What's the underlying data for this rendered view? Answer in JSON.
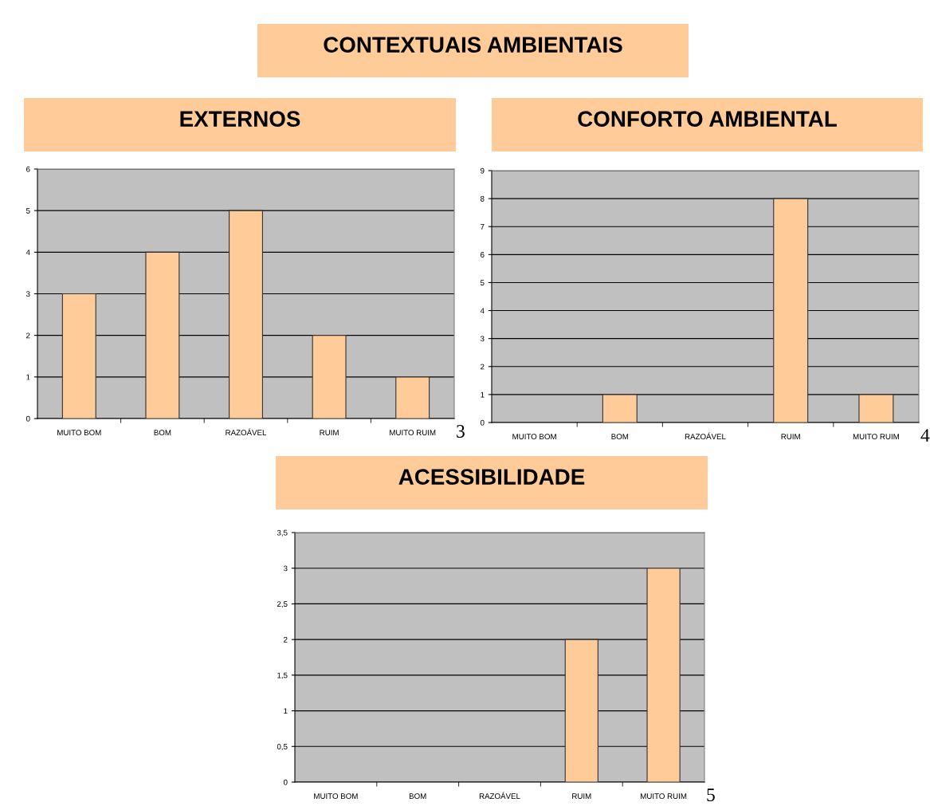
{
  "chart_data": [
    {
      "type": "other",
      "title": "CONTEXTUAIS AMBIENTAIS"
    },
    {
      "type": "bar",
      "title": "EXTERNOS",
      "categories": [
        "MUITO BOM",
        "BOM",
        "RAZOÁVEL",
        "RUIM",
        "MUITO RUIM"
      ],
      "values": [
        3,
        4,
        5,
        2,
        1
      ],
      "color": "#ffcc99",
      "ylim": [
        0,
        6
      ],
      "yticks": [
        0,
        1,
        2,
        3,
        4,
        5,
        6
      ],
      "grid": "y",
      "legend": false,
      "annotations": [
        "3"
      ]
    },
    {
      "type": "bar",
      "title": "CONFORTO AMBIENTAL",
      "categories": [
        "MUITO BOM",
        "BOM",
        "RAZOÁVEL",
        "RUIM",
        "MUITO RUIM"
      ],
      "values": [
        0,
        1,
        0,
        8,
        1
      ],
      "color": "#ffcc99",
      "ylim": [
        0,
        9
      ],
      "yticks": [
        0,
        1,
        2,
        3,
        4,
        5,
        6,
        7,
        8,
        9
      ],
      "grid": "y",
      "legend": false,
      "annotations": [
        "4"
      ]
    },
    {
      "type": "bar",
      "title": "ACESSIBILIDADE",
      "categories": [
        "MUITO BOM",
        "BOM",
        "RAZOÁVEL",
        "RUIM",
        "MUITO RUIM"
      ],
      "values": [
        0,
        0,
        0,
        2,
        3
      ],
      "color": "#ffcc99",
      "ylim": [
        0,
        3.5
      ],
      "yticks": [
        0,
        {
          "value": 0.5,
          "label": "0,5"
        },
        1,
        {
          "value": 1.5,
          "label": "1,5"
        },
        2,
        {
          "value": 2.5,
          "label": "2,5"
        },
        3,
        {
          "value": 3.5,
          "label": "3,5"
        }
      ],
      "grid": "y",
      "legend": false,
      "annotations": [
        "5"
      ]
    }
  ]
}
